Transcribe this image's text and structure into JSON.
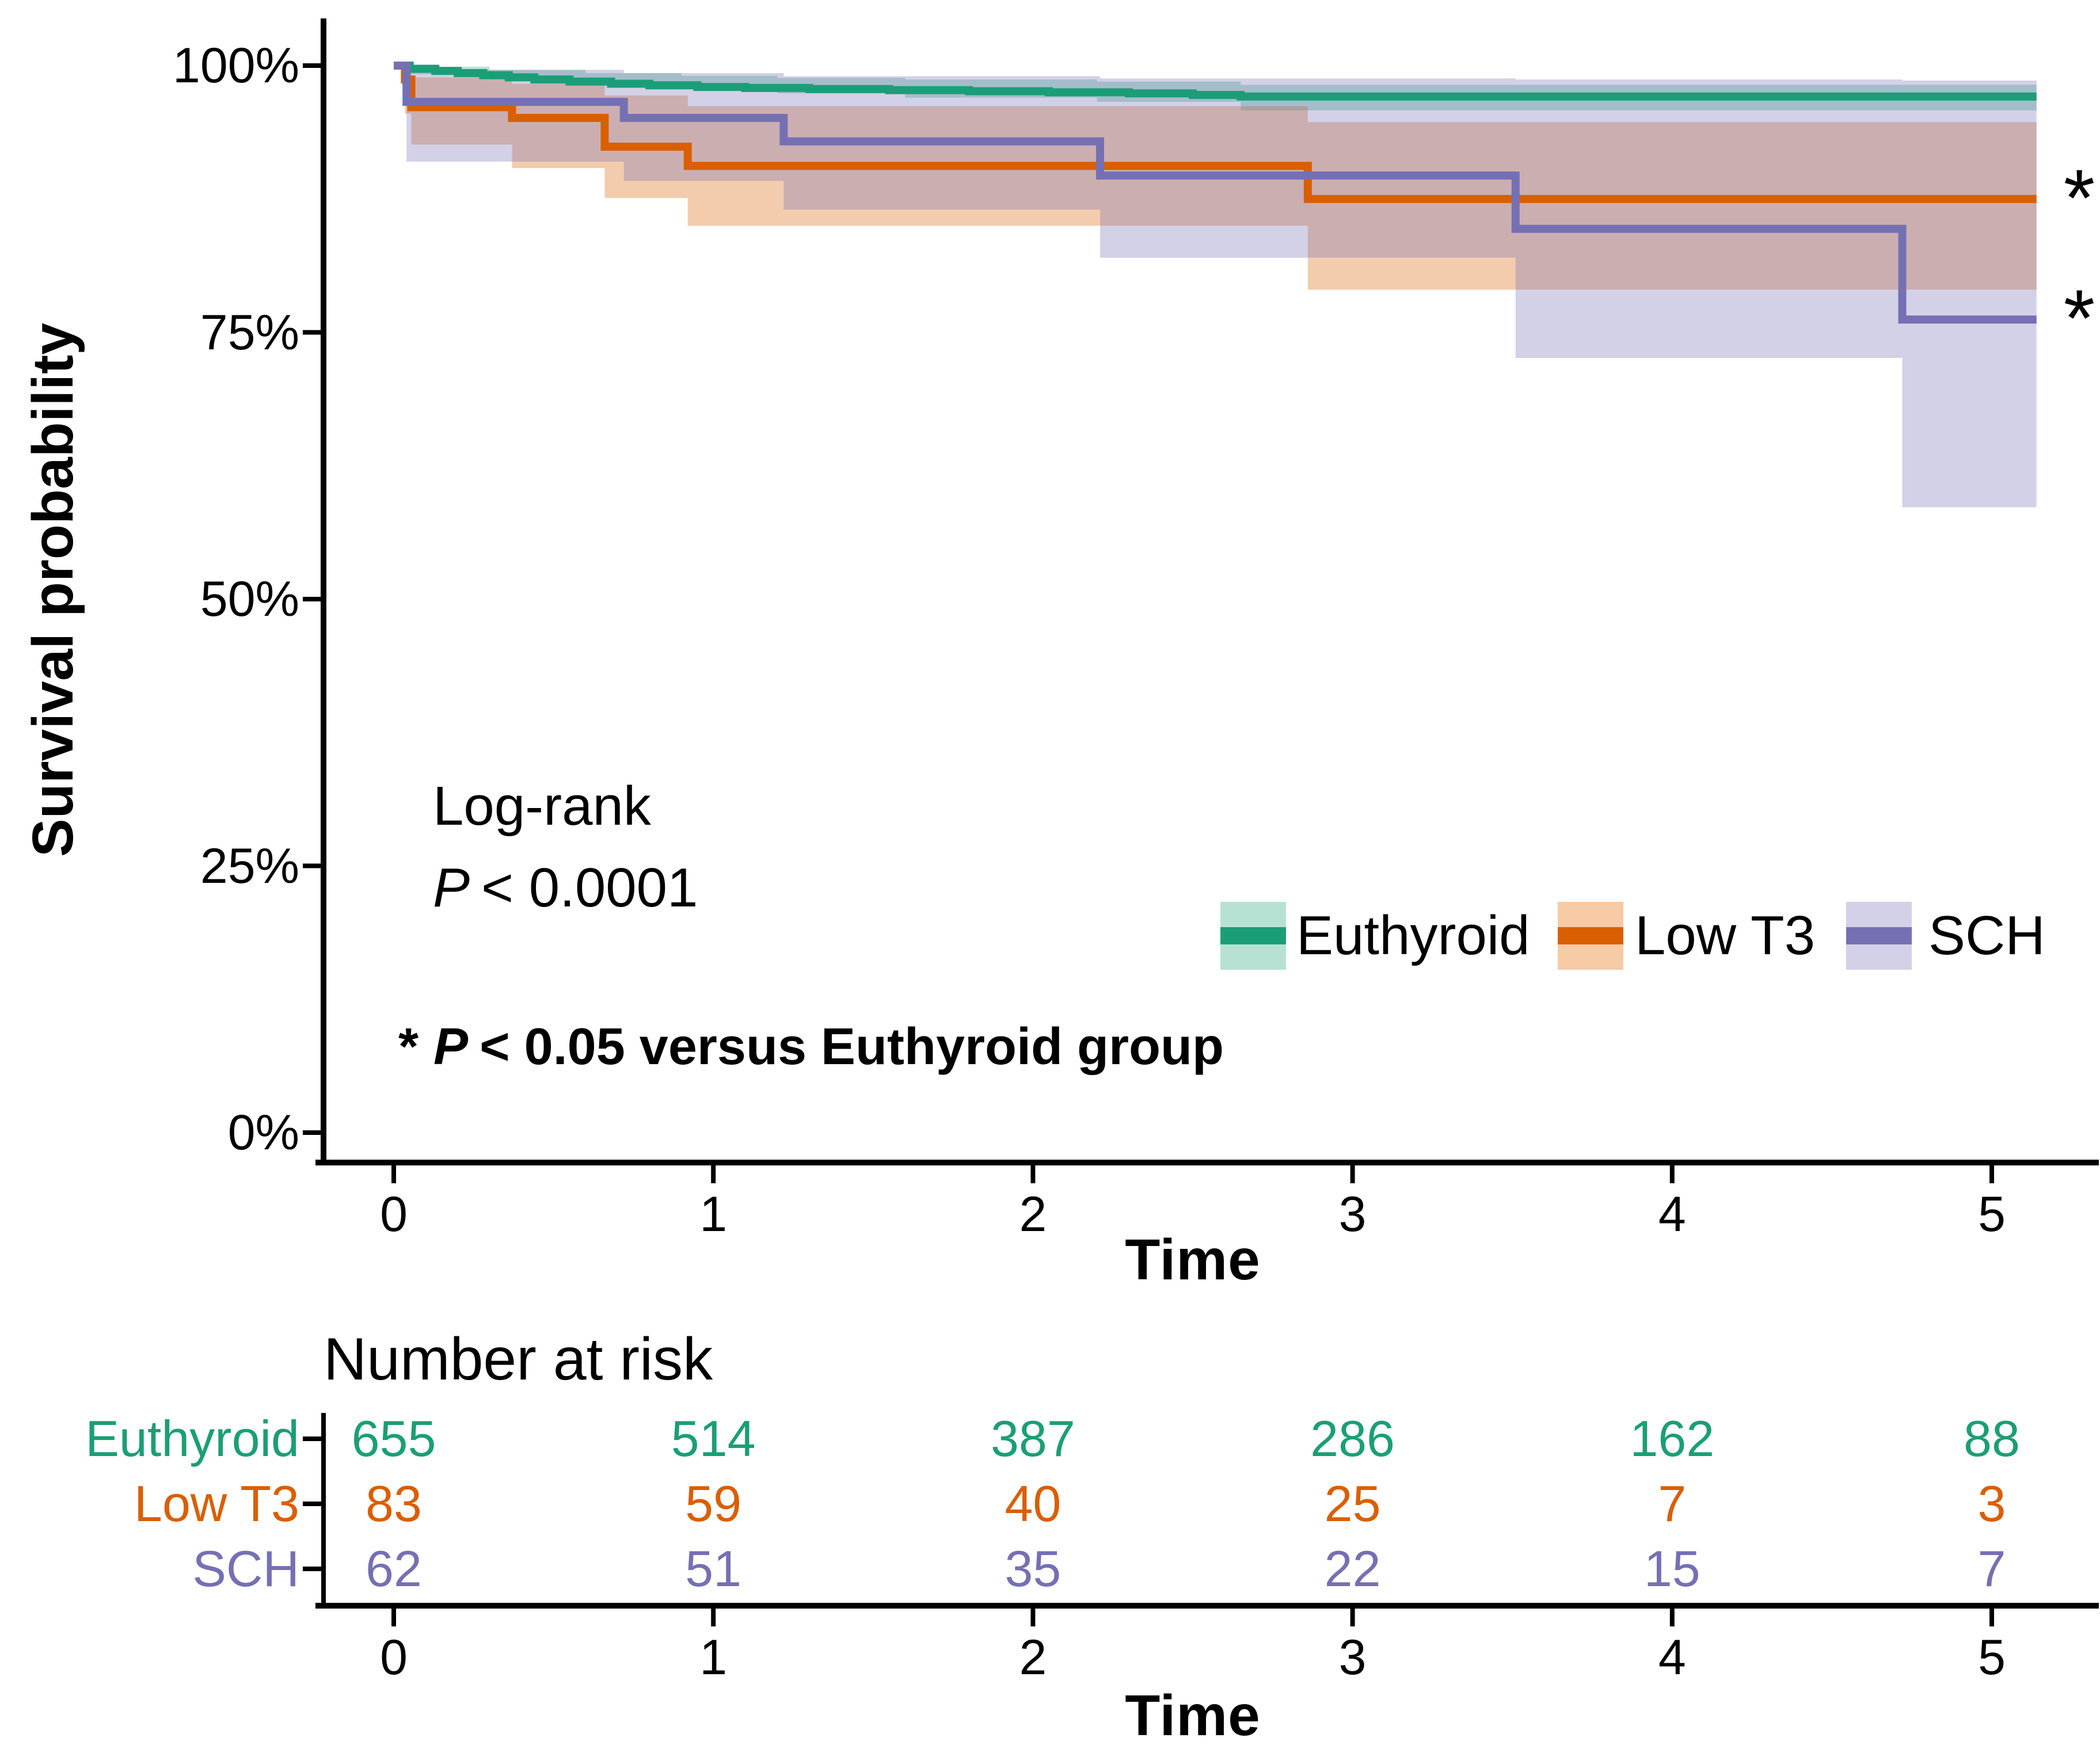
{
  "figure": {
    "background": "#ffffff"
  },
  "y_axis": {
    "title": "Survival probability",
    "ticks": [
      {
        "label": "100%",
        "value": 100
      },
      {
        "label": "75%",
        "value": 75
      },
      {
        "label": "50%",
        "value": 50
      },
      {
        "label": "25%",
        "value": 25
      },
      {
        "label": "0%",
        "value": 0
      }
    ]
  },
  "x_axis": {
    "title": "Time",
    "ticks": [
      {
        "label": "0",
        "value": 0
      },
      {
        "label": "1",
        "value": 1
      },
      {
        "label": "2",
        "value": 2
      },
      {
        "label": "3",
        "value": 3
      },
      {
        "label": "4",
        "value": 4
      },
      {
        "label": "5",
        "value": 5
      }
    ]
  },
  "annotations": {
    "logrank_label": "Log-rank",
    "p_symbol": "P",
    "logrank_value": "< 0.0001",
    "sig_star": "*",
    "sig_text": "< 0.05 versus Euthyroid group",
    "curve_star": "*"
  },
  "legend": {
    "items": [
      {
        "label": "Euthyroid",
        "line_color": "#1b9e77",
        "fill_color": "#b7e2d3"
      },
      {
        "label": "Low T3",
        "line_color": "#d95f02",
        "fill_color": "#f6cba6"
      },
      {
        "label": "SCH",
        "line_color": "#7570b3",
        "fill_color": "#d3d1e8"
      }
    ]
  },
  "risk_table": {
    "title": "Number at risk",
    "axis_title": "Time",
    "times": [
      0,
      1,
      2,
      3,
      4,
      5
    ],
    "rows": [
      {
        "label": "Euthyroid",
        "color": "#1b9e77",
        "counts": [
          655,
          514,
          387,
          286,
          162,
          88
        ]
      },
      {
        "label": "Low T3",
        "color": "#d95f02",
        "counts": [
          83,
          59,
          40,
          25,
          7,
          3
        ]
      },
      {
        "label": "SCH",
        "color": "#7570b3",
        "counts": [
          62,
          51,
          35,
          22,
          15,
          7
        ]
      }
    ]
  },
  "chart_data": {
    "type": "line",
    "subtype": "kaplan_meier_step_with_confidence_bands",
    "title": "",
    "xlabel": "Time",
    "ylabel": "Survival probability",
    "xlim": [
      0,
      5.25
    ],
    "ylim": [
      0,
      100
    ],
    "x_ticks": [
      0,
      1,
      2,
      3,
      4,
      5
    ],
    "y_ticks_percent": [
      0,
      25,
      50,
      75,
      100
    ],
    "grid": false,
    "legend_position": "inside-lower-right",
    "x_end": 5.14,
    "series": [
      {
        "name": "Euthyroid",
        "color": "#1b9e77",
        "ci_fill": "rgba(27,158,119,0.30)",
        "steps": [
          [
            0,
            100
          ],
          [
            0.05,
            99.7
          ],
          [
            0.13,
            99.5
          ],
          [
            0.2,
            99.3
          ],
          [
            0.28,
            99.1
          ],
          [
            0.36,
            98.9
          ],
          [
            0.44,
            98.7
          ],
          [
            0.55,
            98.5
          ],
          [
            0.68,
            98.3
          ],
          [
            0.8,
            98.15
          ],
          [
            0.95,
            98.0
          ],
          [
            1.1,
            97.9
          ],
          [
            1.3,
            97.8
          ],
          [
            1.55,
            97.7
          ],
          [
            1.8,
            97.6
          ],
          [
            2.05,
            97.5
          ],
          [
            2.3,
            97.4
          ],
          [
            2.5,
            97.25
          ],
          [
            2.65,
            97.1
          ],
          [
            5.14,
            97.1
          ]
        ],
        "ci": [
          [
            0,
            100,
            100
          ],
          [
            0.05,
            99.9,
            99.2
          ],
          [
            0.3,
            99.6,
            98.7
          ],
          [
            0.6,
            99.3,
            98.2
          ],
          [
            0.9,
            99.05,
            97.8
          ],
          [
            1.2,
            98.85,
            97.4
          ],
          [
            1.6,
            98.7,
            97.0
          ],
          [
            2.2,
            98.5,
            96.6
          ],
          [
            2.65,
            98.2,
            95.8
          ],
          [
            5.14,
            98.2,
            95.8
          ]
        ]
      },
      {
        "name": "Low T3",
        "color": "#d95f02",
        "ci_fill": "rgba(217,95,2,0.32)",
        "steps": [
          [
            0,
            100
          ],
          [
            0.035,
            98.7
          ],
          [
            0.055,
            96.1
          ],
          [
            0.37,
            95.1
          ],
          [
            0.66,
            92.4
          ],
          [
            0.92,
            90.6
          ],
          [
            2.86,
            87.5
          ],
          [
            5.14,
            87.5
          ]
        ],
        "ci": [
          [
            0,
            100,
            100
          ],
          [
            0.035,
            99.7,
            95.5
          ],
          [
            0.055,
            98.9,
            92.6
          ],
          [
            0.37,
            98.3,
            90.4
          ],
          [
            0.66,
            97.2,
            87.6
          ],
          [
            0.92,
            96.2,
            85.0
          ],
          [
            2.86,
            94.7,
            79.0
          ],
          [
            5.14,
            94.7,
            79.0
          ]
        ]
      },
      {
        "name": "SCH",
        "color": "#7570b3",
        "ci_fill": "rgba(117,112,179,0.32)",
        "steps": [
          [
            0,
            100
          ],
          [
            0.04,
            96.6
          ],
          [
            0.72,
            95.1
          ],
          [
            1.22,
            92.9
          ],
          [
            2.21,
            89.7
          ],
          [
            3.51,
            84.7
          ],
          [
            4.72,
            76.2
          ],
          [
            5.14,
            76.2
          ]
        ],
        "ci": [
          [
            0,
            100,
            100
          ],
          [
            0.04,
            99.6,
            91.0
          ],
          [
            0.72,
            99.3,
            89.2
          ],
          [
            1.22,
            99.0,
            86.5
          ],
          [
            2.21,
            98.8,
            82.0
          ],
          [
            3.51,
            98.7,
            72.6
          ],
          [
            4.72,
            98.6,
            58.6
          ],
          [
            5.14,
            98.6,
            58.6
          ]
        ]
      }
    ],
    "stat_annotation": {
      "test": "Log-rank",
      "p_value": "P < 0.0001"
    },
    "significance_note": "* P < 0.05 versus Euthyroid group",
    "stars": [
      {
        "series": "Low T3",
        "at_percent": 87.5
      },
      {
        "series": "SCH",
        "at_percent": 76.2
      }
    ],
    "number_at_risk": {
      "times": [
        0,
        1,
        2,
        3,
        4,
        5
      ],
      "Euthyroid": [
        655,
        514,
        387,
        286,
        162,
        88
      ],
      "Low T3": [
        83,
        59,
        40,
        25,
        7,
        3
      ],
      "SCH": [
        62,
        51,
        35,
        22,
        15,
        7
      ]
    }
  }
}
